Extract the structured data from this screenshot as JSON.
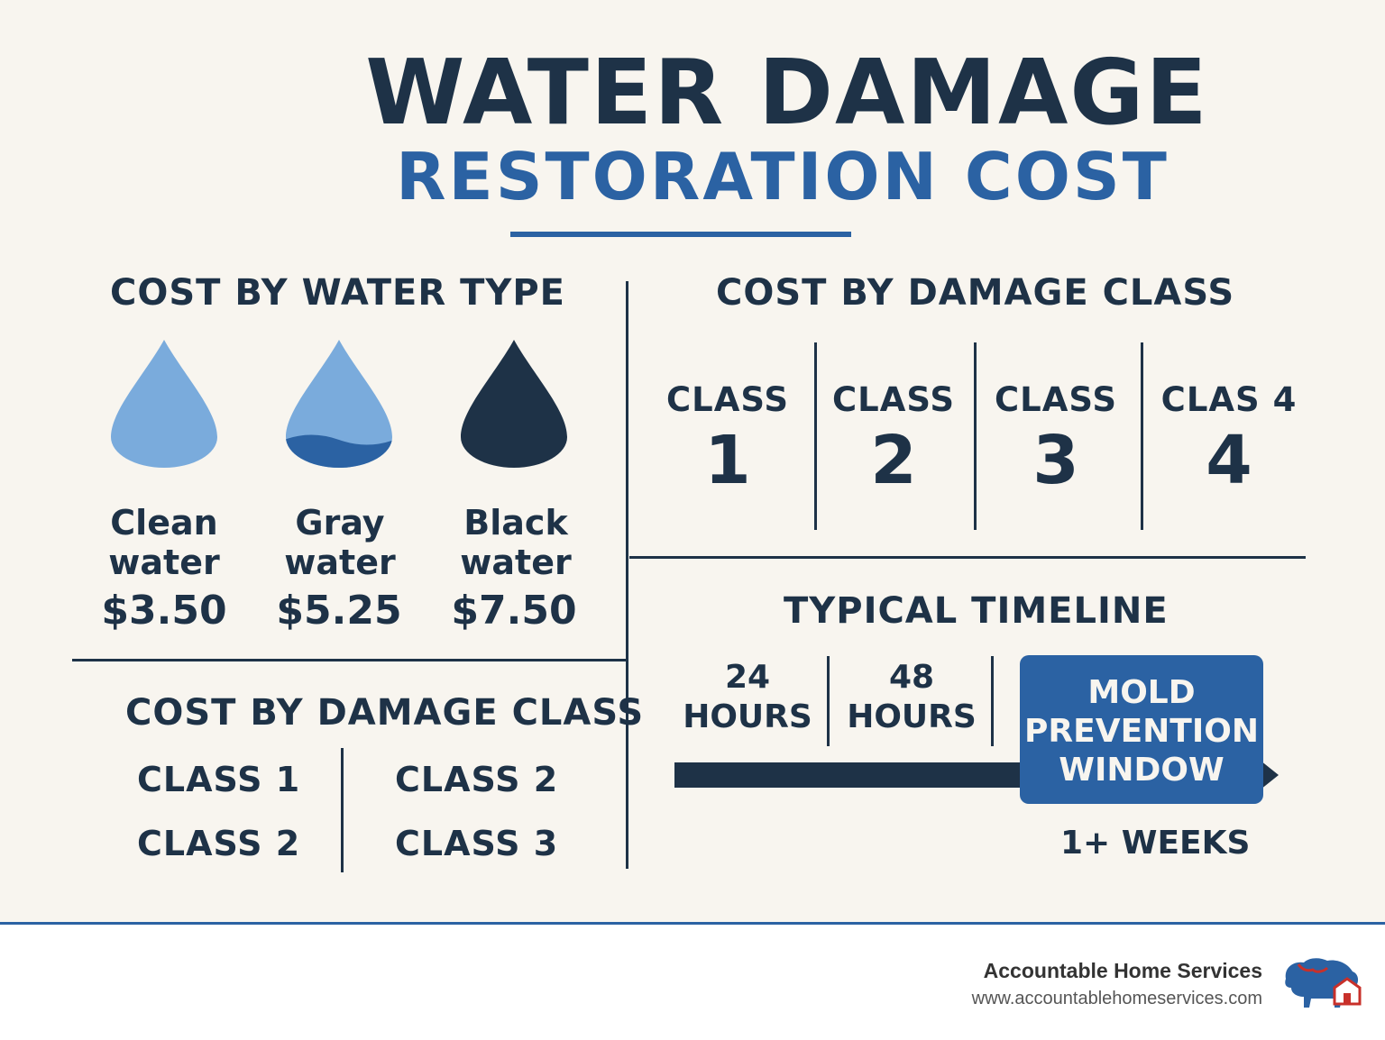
{
  "title": {
    "line1": "WATER DAMAGE",
    "line2": "RESTORATION COST"
  },
  "water_type": {
    "heading": "COST BY WATER TYPE",
    "items": [
      {
        "line1": "Clean",
        "line2": "water",
        "price": "$3.50",
        "color": "#7aabdc"
      },
      {
        "line1": "Gray",
        "line2": "water",
        "price": "$5.25",
        "color": "#2b62a3"
      },
      {
        "line1": "Black",
        "line2": "water",
        "price": "$7.50",
        "color": "#1e3247"
      }
    ]
  },
  "damage_class_top": {
    "heading": "COST BY DAMAGE CLASS",
    "classes": [
      {
        "label": "CLASS",
        "number": "1"
      },
      {
        "label": "CLASS",
        "number": "2"
      },
      {
        "label": "CLASS",
        "number": "3"
      },
      {
        "label": "CLAS 4",
        "number": "4"
      }
    ]
  },
  "damage_class_bottom": {
    "heading": "COST BY DAMAGE CLASS",
    "left": [
      "CLASS 1",
      "CLASS 2"
    ],
    "right": [
      "CLASS 2",
      "CLASS 3"
    ]
  },
  "timeline": {
    "heading": "TYPICAL TIMELINE",
    "steps": [
      {
        "line1": "24",
        "line2": "HOURS"
      },
      {
        "line1": "48",
        "line2": "HOURS"
      }
    ],
    "highlight": {
      "line1": "MOLD",
      "line2": "PREVENTION",
      "line3": "WINDOW"
    },
    "end_label": "1+ WEEKS"
  },
  "footer": {
    "brand": "Accountable Home Services",
    "url": "www.accountablehomeservices.com",
    "logo_icon": "bison-house-logo-icon"
  },
  "colors": {
    "navy": "#1e3247",
    "blue": "#2b62a3",
    "light_blue": "#7aabdc",
    "background": "#f8f5ef"
  }
}
